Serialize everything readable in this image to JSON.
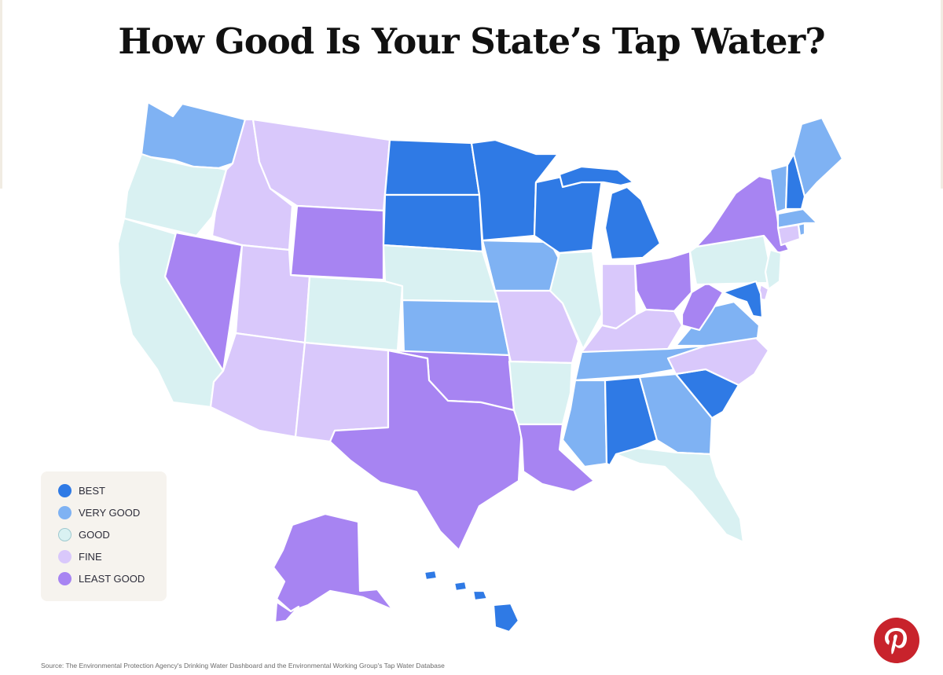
{
  "title": "How Good Is Your State’s Tap Water?",
  "source": "Source: The Environmental Protection Agency's Drinking Water Dashboard and the Environmental Working Group's Tap Water Database",
  "legend": [
    {
      "key": "best",
      "label": "BEST",
      "color": "#2f7ae5"
    },
    {
      "key": "verygood",
      "label": "VERY GOOD",
      "color": "#7fb2f3"
    },
    {
      "key": "good",
      "label": "GOOD",
      "color": "#d9f1f2"
    },
    {
      "key": "fine",
      "label": "FINE",
      "color": "#d9c8fb"
    },
    {
      "key": "leastgood",
      "label": "LEAST GOOD",
      "color": "#a784f2"
    }
  ],
  "states": [
    {
      "code": "WA",
      "rating": "verygood"
    },
    {
      "code": "OR",
      "rating": "good"
    },
    {
      "code": "CA",
      "rating": "good"
    },
    {
      "code": "ID",
      "rating": "fine"
    },
    {
      "code": "NV",
      "rating": "leastgood"
    },
    {
      "code": "MT",
      "rating": "fine"
    },
    {
      "code": "WY",
      "rating": "leastgood"
    },
    {
      "code": "UT",
      "rating": "fine"
    },
    {
      "code": "AZ",
      "rating": "fine"
    },
    {
      "code": "CO",
      "rating": "good"
    },
    {
      "code": "NM",
      "rating": "fine"
    },
    {
      "code": "ND",
      "rating": "best"
    },
    {
      "code": "SD",
      "rating": "best"
    },
    {
      "code": "NE",
      "rating": "good"
    },
    {
      "code": "KS",
      "rating": "verygood"
    },
    {
      "code": "OK",
      "rating": "leastgood"
    },
    {
      "code": "TX",
      "rating": "leastgood"
    },
    {
      "code": "MN",
      "rating": "best"
    },
    {
      "code": "IA",
      "rating": "verygood"
    },
    {
      "code": "MO",
      "rating": "fine"
    },
    {
      "code": "AR",
      "rating": "good"
    },
    {
      "code": "LA",
      "rating": "leastgood"
    },
    {
      "code": "WI",
      "rating": "best"
    },
    {
      "code": "IL",
      "rating": "good"
    },
    {
      "code": "MI",
      "rating": "best"
    },
    {
      "code": "IN",
      "rating": "fine"
    },
    {
      "code": "OH",
      "rating": "leastgood"
    },
    {
      "code": "KY",
      "rating": "fine"
    },
    {
      "code": "TN",
      "rating": "verygood"
    },
    {
      "code": "MS",
      "rating": "verygood"
    },
    {
      "code": "AL",
      "rating": "best"
    },
    {
      "code": "GA",
      "rating": "verygood"
    },
    {
      "code": "FL",
      "rating": "good"
    },
    {
      "code": "SC",
      "rating": "best"
    },
    {
      "code": "NC",
      "rating": "fine"
    },
    {
      "code": "VA",
      "rating": "verygood"
    },
    {
      "code": "WV",
      "rating": "leastgood"
    },
    {
      "code": "PA",
      "rating": "good"
    },
    {
      "code": "NY",
      "rating": "leastgood"
    },
    {
      "code": "VT",
      "rating": "verygood"
    },
    {
      "code": "NH",
      "rating": "best"
    },
    {
      "code": "ME",
      "rating": "verygood"
    },
    {
      "code": "MA",
      "rating": "verygood"
    },
    {
      "code": "CT",
      "rating": "fine"
    },
    {
      "code": "RI",
      "rating": "verygood"
    },
    {
      "code": "NJ",
      "rating": "good"
    },
    {
      "code": "DE",
      "rating": "fine"
    },
    {
      "code": "MD",
      "rating": "best"
    },
    {
      "code": "AK",
      "rating": "leastgood"
    },
    {
      "code": "HI",
      "rating": "best"
    }
  ]
}
